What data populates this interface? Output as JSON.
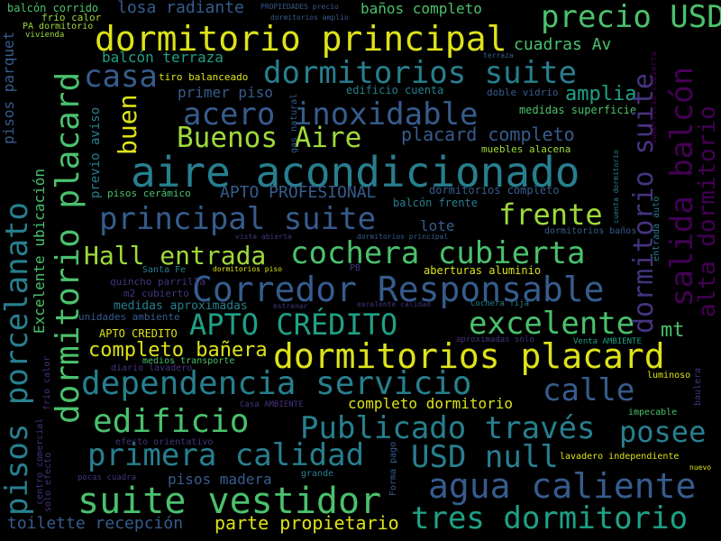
{
  "palette": {
    "yellow": "#dde318",
    "lime": "#9fda3a",
    "green": "#4ac16d",
    "teal": "#1fa187",
    "cyan": "#277f8e",
    "blue": "#365c8d",
    "indigo": "#46337e",
    "purple": "#440154"
  },
  "words": [
    {
      "text": "aire acondicionado",
      "color": "#277f8e"
    },
    {
      "text": "dormitorio principal",
      "color": "#dde318"
    },
    {
      "text": "dormitorios suite",
      "color": "#277f8e"
    },
    {
      "text": "precio USD",
      "color": "#4ac16d"
    },
    {
      "text": "acero inoxidable",
      "color": "#365c8d"
    },
    {
      "text": "Buenos Aire",
      "color": "#9fda3a"
    },
    {
      "text": "principal suite",
      "color": "#365c8d"
    },
    {
      "text": "frente",
      "color": "#9fda3a"
    },
    {
      "text": "cochera cubierta",
      "color": "#4ac16d"
    },
    {
      "text": "Hall entrada",
      "color": "#9fda3a"
    },
    {
      "text": "Corredor Responsable",
      "color": "#365c8d"
    },
    {
      "text": "APTO CRÉDITO",
      "color": "#1fa187"
    },
    {
      "text": "excelente",
      "color": "#4ac16d"
    },
    {
      "text": "dormitorios placard",
      "color": "#dde318"
    },
    {
      "text": "dependencia servicio",
      "color": "#277f8e"
    },
    {
      "text": "calle",
      "color": "#365c8d"
    },
    {
      "text": "edificio",
      "color": "#4ac16d"
    },
    {
      "text": "Publicado través",
      "color": "#277f8e"
    },
    {
      "text": "posee",
      "color": "#277f8e"
    },
    {
      "text": "primera calidad",
      "color": "#277f8e"
    },
    {
      "text": "USD null",
      "color": "#277f8e"
    },
    {
      "text": "agua caliente",
      "color": "#365c8d"
    },
    {
      "text": "suite vestidor",
      "color": "#4ac16d"
    },
    {
      "text": "tres dormitorio",
      "color": "#1fa187"
    },
    {
      "text": "casa",
      "color": "#365c8d"
    },
    {
      "text": "buen",
      "color": "#dde318"
    },
    {
      "text": "completo bañera",
      "color": "#dde318"
    },
    {
      "text": "placard completo",
      "color": "#365c8d"
    },
    {
      "text": "amplia",
      "color": "#1fa187"
    },
    {
      "text": "mt",
      "color": "#4ac16d"
    },
    {
      "text": "balcón terraza",
      "color": "#1fa187"
    },
    {
      "text": "losa radiante",
      "color": "#365c8d"
    },
    {
      "text": "baños completo",
      "color": "#4ac16d"
    },
    {
      "text": "cuadras Av",
      "color": "#4ac16d"
    },
    {
      "text": "APTO PROFESIONAL",
      "color": "#365c8d"
    },
    {
      "text": "lote",
      "color": "#365c8d"
    },
    {
      "text": "parte propietario",
      "color": "#dde318"
    },
    {
      "text": "pisos madera",
      "color": "#365c8d"
    },
    {
      "text": "toilette recepción",
      "color": "#365c8d"
    },
    {
      "text": "completo dormitorio",
      "color": "#dde318"
    },
    {
      "text": "primer piso",
      "color": "#365c8d"
    },
    {
      "text": "edificio cuenta",
      "color": "#277f8e"
    },
    {
      "text": "previo aviso",
      "color": "#277f8e"
    },
    {
      "text": "balcón frente",
      "color": "#277f8e"
    },
    {
      "text": "dormitorios completo",
      "color": "#365c8d"
    },
    {
      "text": "medidas superficie",
      "color": "#4ac16d"
    },
    {
      "text": "doble vidrio",
      "color": "#365c8d"
    },
    {
      "text": "muebles alacena",
      "color": "#9fda3a"
    },
    {
      "text": "tiro balanceado",
      "color": "#dde318"
    },
    {
      "text": "terraza",
      "color": "#365c8d"
    },
    {
      "text": "aberturas aluminio",
      "color": "#dde318"
    },
    {
      "text": "medidas aproximadas",
      "color": "#277f8e"
    },
    {
      "text": "unidades ambiente",
      "color": "#365c8d"
    },
    {
      "text": "quincho parrilla",
      "color": "#46337e"
    },
    {
      "text": "m2 cubierto",
      "color": "#46337e"
    },
    {
      "text": "APTO CREDITO",
      "color": "#dde318"
    },
    {
      "text": "medios transporte",
      "color": "#4ac16d"
    },
    {
      "text": "diario lavadero",
      "color": "#46337e"
    },
    {
      "text": "pisos cerámico",
      "color": "#4ac16d"
    },
    {
      "text": "Santa Fe",
      "color": "#277f8e"
    },
    {
      "text": "dormitorios piso",
      "color": "#dde318"
    },
    {
      "text": "PB",
      "color": "#46337e"
    },
    {
      "text": "vista abierta",
      "color": "#46337e"
    },
    {
      "text": "dormitorios principal",
      "color": "#365c8d"
    },
    {
      "text": "dormitorios baños",
      "color": "#365c8d"
    },
    {
      "text": "estrenar",
      "color": "#46337e"
    },
    {
      "text": "excelente calidad",
      "color": "#46337e"
    },
    {
      "text": "Cochera fija",
      "color": "#277f8e"
    },
    {
      "text": "aproximadas solo",
      "color": "#46337e"
    },
    {
      "text": "Venta AMBIENTE",
      "color": "#1fa187"
    },
    {
      "text": "luminoso",
      "color": "#dde318"
    },
    {
      "text": "impecable",
      "color": "#4ac16d"
    },
    {
      "text": "Casa AMBIENTE",
      "color": "#46337e"
    },
    {
      "text": "efecto orientativo",
      "color": "#46337e"
    },
    {
      "text": "lavadero independiente",
      "color": "#dde318"
    },
    {
      "text": "nuevo",
      "color": "#dde318"
    },
    {
      "text": "grande",
      "color": "#277f8e"
    },
    {
      "text": "pocas cuadra",
      "color": "#46337e"
    },
    {
      "text": "balcón corrido",
      "color": "#4ac16d"
    },
    {
      "text": "frío calor",
      "color": "#9fda3a"
    },
    {
      "text": "PA dormitorio",
      "color": "#9fda3a"
    },
    {
      "text": "vivienda",
      "color": "#9fda3a"
    },
    {
      "text": "PROPIEDADES precio",
      "color": "#365c8d"
    },
    {
      "text": "dormitorios amplio",
      "color": "#365c8d"
    },
    {
      "text": "pisos parquet",
      "color": "#365c8d"
    },
    {
      "text": "pisos porcelanato",
      "color": "#277f8e"
    },
    {
      "text": "dormitorio placard",
      "color": "#4ac16d"
    },
    {
      "text": "Excelente ubicación",
      "color": "#4ac16d"
    },
    {
      "text": "solo efecto",
      "color": "#46337e"
    },
    {
      "text": "frío calor",
      "color": "#46337e"
    },
    {
      "text": "centro comercial",
      "color": "#46337e"
    },
    {
      "text": "gas natural",
      "color": "#365c8d"
    },
    {
      "text": "Forma pago",
      "color": "#365c8d"
    },
    {
      "text": "dormitorio suite",
      "color": "#46337e"
    },
    {
      "text": "salida balcón",
      "color": "#440154"
    },
    {
      "text": "alta dormitorio",
      "color": "#440154"
    },
    {
      "text": "Superficie cubierta",
      "color": "#440154"
    },
    {
      "text": "cuenta dormitorio",
      "color": "#277f8e"
    },
    {
      "text": "entrada auto",
      "color": "#277f8e"
    },
    {
      "text": "baulera",
      "color": "#46337e"
    }
  ]
}
